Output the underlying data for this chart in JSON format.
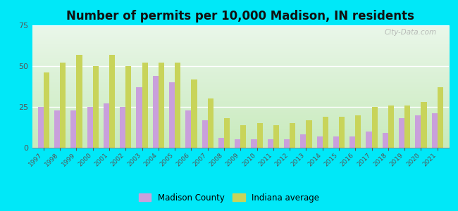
{
  "title": "Number of permits per 10,000 Madison, IN residents",
  "years": [
    1997,
    1998,
    1999,
    2000,
    2001,
    2002,
    2003,
    2004,
    2005,
    2006,
    2007,
    2008,
    2009,
    2010,
    2011,
    2012,
    2013,
    2014,
    2015,
    2016,
    2017,
    2018,
    2019,
    2020,
    2021
  ],
  "madison_county": [
    25,
    23,
    23,
    25,
    27,
    25,
    37,
    44,
    40,
    23,
    17,
    6,
    5,
    5,
    5,
    5,
    8,
    7,
    7,
    7,
    10,
    9,
    18,
    20,
    21
  ],
  "indiana_avg": [
    46,
    52,
    57,
    50,
    57,
    50,
    52,
    52,
    52,
    42,
    30,
    18,
    14,
    15,
    14,
    15,
    17,
    19,
    19,
    20,
    25,
    26,
    26,
    28,
    37
  ],
  "madison_color": "#c9a0dc",
  "indiana_color": "#c8d45a",
  "bg_outer": "#00e8f8",
  "bg_plot_top": "#f0faf0",
  "bg_plot_bottom": "#c8eec8",
  "ylim": [
    0,
    75
  ],
  "yticks": [
    0,
    25,
    50,
    75
  ],
  "title_fontsize": 12,
  "legend_labels": [
    "Madison County",
    "Indiana average"
  ],
  "watermark": "City-Data.com"
}
